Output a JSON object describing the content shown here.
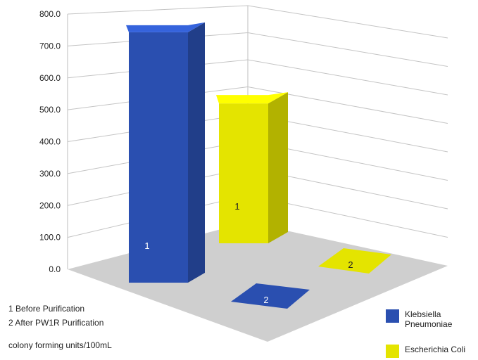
{
  "chart_data": {
    "type": "bar",
    "style": "3d",
    "categories": [
      "1",
      "2"
    ],
    "series": [
      {
        "name": "Klebsiella Pneumoniae",
        "color": "#2a4fb0",
        "values": [
          770,
          40
        ]
      },
      {
        "name": "Escherichia Coli",
        "color": "#e4e400",
        "values": [
          430,
          30
        ]
      }
    ],
    "yticks": [
      "0.0",
      "100.0",
      "200.0",
      "300.0",
      "400.0",
      "500.0",
      "600.0",
      "700.0",
      "800.0"
    ],
    "ylim": [
      0,
      800
    ],
    "grid": true,
    "legend": "bottom-right",
    "notes": [
      "1 Before Purification",
      "2 After PW1R Purification",
      "colony forming units/100mL"
    ]
  }
}
